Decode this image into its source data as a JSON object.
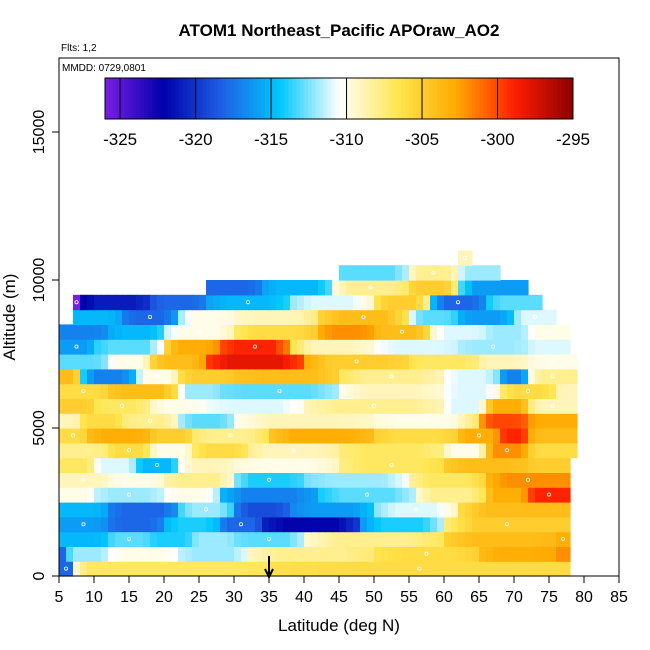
{
  "chart_data": {
    "type": "heatmap",
    "title": "ATOM1 Northeast_Pacific APOraw_AO2",
    "flights_label": "Flts: 1,2",
    "dates_label": "MMDD: 0729,0801",
    "xlabel": "Latitude (deg N)",
    "ylabel": "Altitude (m)",
    "xlim": [
      5,
      85
    ],
    "ylim": [
      0,
      17500
    ],
    "x_ticks": [
      5,
      10,
      15,
      20,
      25,
      30,
      35,
      40,
      45,
      50,
      55,
      60,
      65,
      70,
      75,
      80,
      85
    ],
    "y_ticks": [
      0,
      5000,
      10000,
      15000
    ],
    "colorbar": {
      "range": [
        -326,
        -295
      ],
      "ticks": [
        -325,
        -320,
        -315,
        -310,
        -305,
        -300,
        -295
      ],
      "colors": [
        "#7a1ee6",
        "#0000aa",
        "#1e60e6",
        "#00c8ff",
        "#ffffff",
        "#ffe650",
        "#ffaa00",
        "#ff1e00",
        "#8c0000"
      ]
    },
    "marker_latitude": 35,
    "layers": [
      {
        "alt_bottom": 0,
        "alt_top": 500,
        "segments": [
          [
            5,
            7,
            -318
          ],
          [
            7,
            15,
            -307
          ],
          [
            15,
            35,
            -307
          ],
          [
            35,
            78,
            -306
          ]
        ]
      },
      {
        "alt_bottom": 500,
        "alt_top": 1000,
        "segments": [
          [
            5,
            6,
            -318
          ],
          [
            6,
            12,
            -312
          ],
          [
            12,
            22,
            -310
          ],
          [
            22,
            32,
            -312
          ],
          [
            32,
            50,
            -308
          ],
          [
            50,
            65,
            -306
          ],
          [
            65,
            76,
            -303
          ],
          [
            76,
            78,
            -302
          ]
        ]
      },
      {
        "alt_bottom": 1000,
        "alt_top": 1500,
        "segments": [
          [
            5,
            12,
            -315
          ],
          [
            12,
            18,
            -313
          ],
          [
            18,
            24,
            -314
          ],
          [
            24,
            30,
            -312
          ],
          [
            30,
            40,
            -313
          ],
          [
            40,
            60,
            -308
          ],
          [
            60,
            76,
            -304
          ],
          [
            76,
            78,
            -303
          ]
        ]
      },
      {
        "alt_bottom": 1500,
        "alt_top": 2000,
        "segments": [
          [
            5,
            12,
            -316
          ],
          [
            12,
            20,
            -318
          ],
          [
            20,
            28,
            -314
          ],
          [
            28,
            34,
            -318
          ],
          [
            34,
            48,
            -322
          ],
          [
            48,
            60,
            -314
          ],
          [
            60,
            78,
            -305
          ]
        ]
      },
      {
        "alt_bottom": 2000,
        "alt_top": 2500,
        "segments": [
          [
            5,
            12,
            -315
          ],
          [
            12,
            22,
            -318
          ],
          [
            22,
            30,
            -312
          ],
          [
            30,
            38,
            -319
          ],
          [
            38,
            50,
            -316
          ],
          [
            50,
            62,
            -311
          ],
          [
            62,
            78,
            -304
          ]
        ]
      },
      {
        "alt_bottom": 2500,
        "alt_top": 3000,
        "segments": [
          [
            5,
            10,
            -310
          ],
          [
            10,
            20,
            -312
          ],
          [
            20,
            28,
            -310
          ],
          [
            28,
            42,
            -317
          ],
          [
            42,
            56,
            -313
          ],
          [
            56,
            66,
            -308
          ],
          [
            66,
            72,
            -303
          ],
          [
            72,
            78,
            -299
          ]
        ]
      },
      {
        "alt_bottom": 3000,
        "alt_top": 3500,
        "segments": [
          [
            5,
            12,
            -309
          ],
          [
            12,
            20,
            -310
          ],
          [
            20,
            30,
            -308
          ],
          [
            30,
            40,
            -314
          ],
          [
            40,
            55,
            -312
          ],
          [
            55,
            66,
            -307
          ],
          [
            66,
            78,
            -302
          ]
        ]
      },
      {
        "alt_bottom": 3500,
        "alt_top": 4000,
        "segments": [
          [
            5,
            10,
            -307
          ],
          [
            10,
            16,
            -311
          ],
          [
            16,
            22,
            -315
          ],
          [
            22,
            30,
            -309
          ],
          [
            30,
            45,
            -310
          ],
          [
            45,
            60,
            -307
          ],
          [
            60,
            72,
            -304
          ],
          [
            72,
            78,
            -305
          ]
        ]
      },
      {
        "alt_bottom": 4000,
        "alt_top": 4500,
        "segments": [
          [
            5,
            12,
            -308
          ],
          [
            12,
            18,
            -306
          ],
          [
            18,
            24,
            -310
          ],
          [
            24,
            32,
            -306
          ],
          [
            32,
            45,
            -309
          ],
          [
            45,
            60,
            -307
          ],
          [
            60,
            66,
            -310
          ],
          [
            66,
            72,
            -302
          ],
          [
            72,
            79,
            -306
          ]
        ]
      },
      {
        "alt_bottom": 4500,
        "alt_top": 5000,
        "segments": [
          [
            5,
            9,
            -306
          ],
          [
            9,
            18,
            -303
          ],
          [
            18,
            24,
            -305
          ],
          [
            24,
            35,
            -308
          ],
          [
            35,
            50,
            -303
          ],
          [
            50,
            62,
            -306
          ],
          [
            62,
            68,
            -303
          ],
          [
            68,
            72,
            -299
          ],
          [
            72,
            79,
            -304
          ]
        ]
      },
      {
        "alt_bottom": 5000,
        "alt_top": 5500,
        "segments": [
          [
            5,
            8,
            -309
          ],
          [
            8,
            14,
            -306
          ],
          [
            14,
            22,
            -308
          ],
          [
            22,
            30,
            -313
          ],
          [
            30,
            50,
            -309
          ],
          [
            50,
            65,
            -310
          ],
          [
            65,
            72,
            -300
          ],
          [
            72,
            79,
            -303
          ]
        ]
      },
      {
        "alt_bottom": 5500,
        "alt_top": 6000,
        "segments": [
          [
            5,
            10,
            -305
          ],
          [
            10,
            18,
            -307
          ],
          [
            18,
            26,
            -310
          ],
          [
            26,
            40,
            -311
          ],
          [
            40,
            60,
            -308
          ],
          [
            60,
            66,
            -311
          ],
          [
            66,
            72,
            -303
          ],
          [
            72,
            79,
            -309
          ]
        ]
      },
      {
        "alt_bottom": 6000,
        "alt_top": 6500,
        "segments": [
          [
            5,
            12,
            -306
          ],
          [
            12,
            22,
            -304
          ],
          [
            22,
            28,
            -312
          ],
          [
            28,
            45,
            -313
          ],
          [
            45,
            60,
            -309
          ],
          [
            60,
            68,
            -311
          ],
          [
            68,
            76,
            -306
          ],
          [
            76,
            79,
            -309
          ]
        ]
      },
      {
        "alt_bottom": 6500,
        "alt_top": 7000,
        "segments": [
          [
            5,
            8,
            -304
          ],
          [
            8,
            16,
            -317
          ],
          [
            16,
            22,
            -310
          ],
          [
            22,
            30,
            -305
          ],
          [
            30,
            45,
            -304
          ],
          [
            45,
            60,
            -308
          ],
          [
            60,
            68,
            -311
          ],
          [
            68,
            72,
            -317
          ],
          [
            72,
            79,
            -308
          ]
        ]
      },
      {
        "alt_bottom": 7000,
        "alt_top": 7500,
        "segments": [
          [
            5,
            12,
            -313
          ],
          [
            12,
            18,
            -310
          ],
          [
            18,
            26,
            -304
          ],
          [
            26,
            40,
            -298
          ],
          [
            40,
            55,
            -305
          ],
          [
            55,
            65,
            -307
          ],
          [
            65,
            72,
            -309
          ],
          [
            72,
            79,
            -310
          ]
        ]
      },
      {
        "alt_bottom": 7500,
        "alt_top": 8000,
        "segments": [
          [
            5,
            10,
            -316
          ],
          [
            10,
            20,
            -313
          ],
          [
            20,
            28,
            -303
          ],
          [
            28,
            38,
            -299
          ],
          [
            38,
            50,
            -309
          ],
          [
            50,
            62,
            -311
          ],
          [
            62,
            72,
            -312
          ],
          [
            72,
            78,
            -311
          ]
        ]
      },
      {
        "alt_bottom": 8000,
        "alt_top": 8500,
        "segments": [
          [
            5,
            12,
            -317
          ],
          [
            12,
            20,
            -315
          ],
          [
            20,
            30,
            -310
          ],
          [
            30,
            42,
            -306
          ],
          [
            42,
            50,
            -302
          ],
          [
            50,
            58,
            -304
          ],
          [
            58,
            66,
            -311
          ],
          [
            66,
            72,
            -312
          ],
          [
            72,
            78,
            -310
          ]
        ]
      },
      {
        "alt_bottom": 8500,
        "alt_top": 9000,
        "segments": [
          [
            7,
            14,
            -315
          ],
          [
            14,
            22,
            -318
          ],
          [
            22,
            30,
            -310
          ],
          [
            30,
            42,
            -309
          ],
          [
            42,
            55,
            -304
          ],
          [
            55,
            62,
            -313
          ],
          [
            62,
            70,
            -316
          ],
          [
            70,
            76,
            -311
          ]
        ]
      },
      {
        "alt_bottom": 9000,
        "alt_top": 9500,
        "segments": [
          [
            7,
            8,
            -326
          ],
          [
            8,
            18,
            -321
          ],
          [
            18,
            26,
            -318
          ],
          [
            26,
            38,
            -315
          ],
          [
            38,
            50,
            -311
          ],
          [
            50,
            58,
            -305
          ],
          [
            58,
            66,
            -318
          ],
          [
            66,
            74,
            -313
          ]
        ]
      },
      {
        "alt_bottom": 9500,
        "alt_top": 10000,
        "segments": [
          [
            26,
            34,
            -318
          ],
          [
            34,
            44,
            -315
          ],
          [
            44,
            55,
            -308
          ],
          [
            55,
            62,
            -305
          ],
          [
            62,
            72,
            -316
          ]
        ]
      },
      {
        "alt_bottom": 10000,
        "alt_top": 10500,
        "segments": [
          [
            45,
            55,
            -313
          ],
          [
            55,
            62,
            -308
          ],
          [
            62,
            68,
            -312
          ]
        ]
      },
      {
        "alt_bottom": 10500,
        "alt_top": 11000,
        "segments": [
          [
            62,
            64,
            -309
          ]
        ]
      }
    ]
  }
}
